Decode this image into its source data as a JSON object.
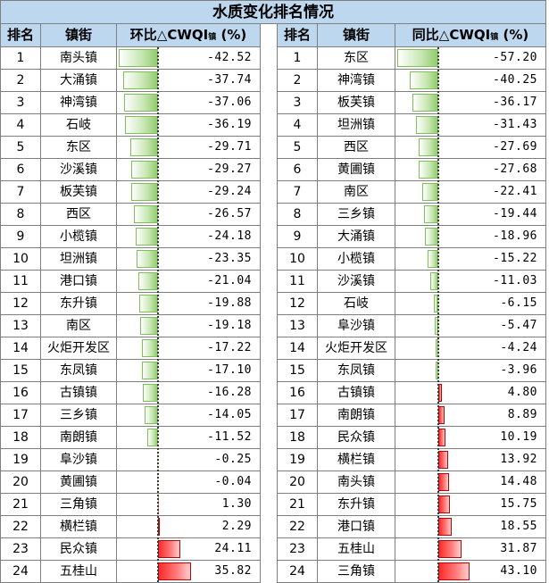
{
  "title": "水质变化排名情况",
  "left": {
    "col_rank": "排名",
    "col_town": "镇街",
    "col_metric": "环比△CWQI",
    "col_metric_sub": "镇",
    "col_metric_unit": "(%)",
    "axis_min": -42.52,
    "axis_max": 35.82
  },
  "right": {
    "col_rank": "排名",
    "col_town": "镇街",
    "col_metric": "同比△CWQI",
    "col_metric_sub": "镇",
    "col_metric_unit": "(%)",
    "axis_min": -57.2,
    "axis_max": 43.1
  },
  "chart_data": [
    {
      "type": "table",
      "title": "环比△CWQI镇 (%)",
      "rows": [
        {
          "rank": "1",
          "town": "南头镇",
          "value": -42.52
        },
        {
          "rank": "2",
          "town": "大涌镇",
          "value": -37.74
        },
        {
          "rank": "3",
          "town": "神湾镇",
          "value": -37.06
        },
        {
          "rank": "4",
          "town": "石岐",
          "value": -36.19
        },
        {
          "rank": "5",
          "town": "东区",
          "value": -29.71
        },
        {
          "rank": "6",
          "town": "沙溪镇",
          "value": -29.27
        },
        {
          "rank": "7",
          "town": "板芙镇",
          "value": -29.24
        },
        {
          "rank": "8",
          "town": "西区",
          "value": -26.57
        },
        {
          "rank": "9",
          "town": "小榄镇",
          "value": -24.18
        },
        {
          "rank": "10",
          "town": "坦洲镇",
          "value": -23.35
        },
        {
          "rank": "11",
          "town": "港口镇",
          "value": -21.04
        },
        {
          "rank": "12",
          "town": "东升镇",
          "value": -19.88
        },
        {
          "rank": "13",
          "town": "南区",
          "value": -19.18
        },
        {
          "rank": "14",
          "town": "火炬开发区",
          "value": -17.22
        },
        {
          "rank": "15",
          "town": "东凤镇",
          "value": -17.1
        },
        {
          "rank": "16",
          "town": "古镇镇",
          "value": -16.28
        },
        {
          "rank": "17",
          "town": "三乡镇",
          "value": -14.05
        },
        {
          "rank": "18",
          "town": "南朗镇",
          "value": -11.52
        },
        {
          "rank": "19",
          "town": "阜沙镇",
          "value": -0.25
        },
        {
          "rank": "20",
          "town": "黄圃镇",
          "value": -0.04
        },
        {
          "rank": "21",
          "town": "三角镇",
          "value": 1.3
        },
        {
          "rank": "22",
          "town": "横栏镇",
          "value": 2.29
        },
        {
          "rank": "23",
          "town": "民众镇",
          "value": 24.11
        },
        {
          "rank": "24",
          "town": "五桂山",
          "value": 35.82
        }
      ]
    },
    {
      "type": "table",
      "title": "同比△CWQI镇 (%)",
      "rows": [
        {
          "rank": "1",
          "town": "东区",
          "value": -57.2
        },
        {
          "rank": "2",
          "town": "神湾镇",
          "value": -40.25
        },
        {
          "rank": "3",
          "town": "板芙镇",
          "value": -36.17
        },
        {
          "rank": "4",
          "town": "坦洲镇",
          "value": -31.43
        },
        {
          "rank": "5",
          "town": "西区",
          "value": -27.69
        },
        {
          "rank": "6",
          "town": "黄圃镇",
          "value": -27.68
        },
        {
          "rank": "7",
          "town": "南区",
          "value": -22.41
        },
        {
          "rank": "8",
          "town": "三乡镇",
          "value": -19.44
        },
        {
          "rank": "9",
          "town": "大涌镇",
          "value": -18.96
        },
        {
          "rank": "10",
          "town": "小榄镇",
          "value": -15.22
        },
        {
          "rank": "11",
          "town": "沙溪镇",
          "value": -11.03
        },
        {
          "rank": "12",
          "town": "石岐",
          "value": -6.15
        },
        {
          "rank": "13",
          "town": "阜沙镇",
          "value": -5.47
        },
        {
          "rank": "14",
          "town": "火炬开发区",
          "value": -4.24
        },
        {
          "rank": "15",
          "town": "东凤镇",
          "value": -3.96
        },
        {
          "rank": "16",
          "town": "古镇镇",
          "value": 4.8
        },
        {
          "rank": "17",
          "town": "南朗镇",
          "value": 8.89
        },
        {
          "rank": "18",
          "town": "民众镇",
          "value": 10.19
        },
        {
          "rank": "19",
          "town": "横栏镇",
          "value": 13.92
        },
        {
          "rank": "20",
          "town": "南头镇",
          "value": 14.48
        },
        {
          "rank": "21",
          "town": "东升镇",
          "value": 15.75
        },
        {
          "rank": "22",
          "town": "港口镇",
          "value": 18.55
        },
        {
          "rank": "23",
          "town": "五桂山",
          "value": 31.87
        },
        {
          "rank": "24",
          "town": "三角镇",
          "value": 43.1
        }
      ]
    }
  ],
  "colors": {
    "header_bg": "#bdd7ee",
    "negative_bar": "#8fcc6b",
    "positive_bar": "#ff2a2a",
    "grid": "#7f7f7f"
  }
}
